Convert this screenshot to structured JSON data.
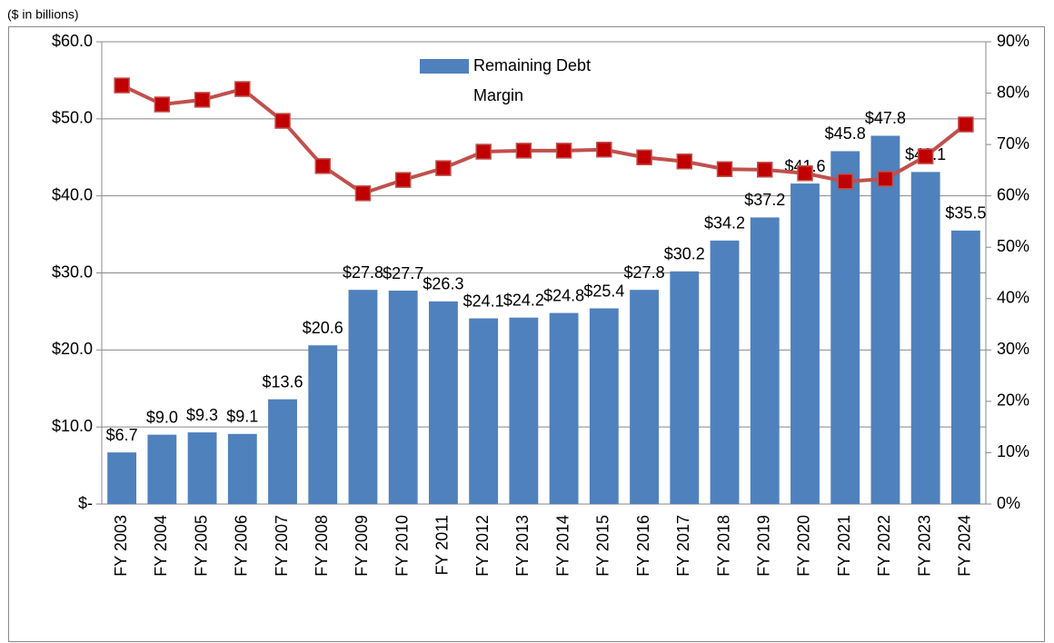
{
  "chart_data": {
    "type": "combo",
    "subtitle": "($ in billions)",
    "categories": [
      "FY 2003",
      "FY 2004",
      "FY 2005",
      "FY 2006",
      "FY 2007",
      "FY 2008",
      "FY 2009",
      "FY 2010",
      "FY 2011",
      "FY 2012",
      "FY 2013",
      "FY 2014",
      "FY 2015",
      "FY 2016",
      "FY 2017",
      "FY 2018",
      "FY 2019",
      "FY 2020",
      "FY 2021",
      "FY 2022",
      "FY 2023",
      "FY 2024"
    ],
    "series": [
      {
        "name": "Remaining Debt",
        "type": "bar",
        "color": "#4f81bd",
        "values": [
          6.7,
          9.0,
          9.3,
          9.1,
          13.6,
          20.6,
          27.8,
          27.7,
          26.3,
          24.1,
          24.2,
          24.8,
          25.4,
          27.8,
          30.2,
          34.2,
          37.2,
          41.6,
          45.8,
          47.8,
          43.1,
          35.5
        ],
        "value_labels": [
          "$6.7",
          "$9.0",
          "$9.3",
          "$9.1",
          "$13.6",
          "$20.6",
          "$27.8",
          "$27.7",
          "$26.3",
          "$24.1",
          "$24.2",
          "$24.8",
          "$25.4",
          "$27.8",
          "$30.2",
          "$34.2",
          "$37.2",
          "$41.6",
          "$45.8",
          "$47.8",
          "$43.1",
          "$35.5"
        ]
      },
      {
        "name": "Margin",
        "type": "line",
        "axis": "y2",
        "color": "#c0504d",
        "marker_color": "#c00000",
        "values": [
          81.5,
          77.8,
          78.7,
          80.8,
          74.6,
          65.8,
          60.5,
          63.1,
          65.4,
          68.6,
          68.8,
          68.8,
          69.0,
          67.5,
          66.7,
          65.2,
          65.1,
          64.4,
          62.8,
          63.3,
          67.7,
          73.9
        ]
      }
    ],
    "ylim": [
      0,
      60
    ],
    "yticks": [
      {
        "value": 0,
        "label": "$-"
      },
      {
        "value": 10,
        "label": "$10.0"
      },
      {
        "value": 20,
        "label": "$20.0"
      },
      {
        "value": 30,
        "label": "$30.0"
      },
      {
        "value": 40,
        "label": "$40.0"
      },
      {
        "value": 50,
        "label": "$50.0"
      },
      {
        "value": 60,
        "label": "$60.0"
      }
    ],
    "y2lim": [
      0,
      90
    ],
    "y2ticks": [
      {
        "value": 0,
        "label": "0%"
      },
      {
        "value": 10,
        "label": "10%"
      },
      {
        "value": 20,
        "label": "20%"
      },
      {
        "value": 30,
        "label": "30%"
      },
      {
        "value": 40,
        "label": "40%"
      },
      {
        "value": 50,
        "label": "50%"
      },
      {
        "value": 60,
        "label": "60%"
      },
      {
        "value": 70,
        "label": "70%"
      },
      {
        "value": 80,
        "label": "80%"
      },
      {
        "value": 90,
        "label": "90%"
      }
    ],
    "grid": true
  }
}
